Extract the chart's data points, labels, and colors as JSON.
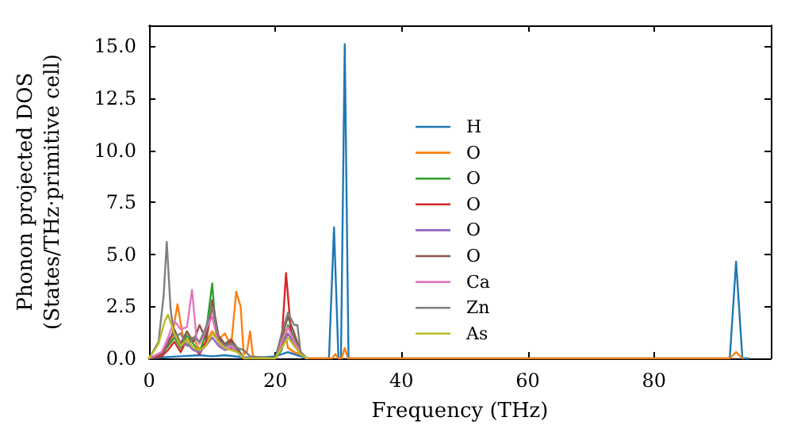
{
  "chart_data": {
    "type": "line",
    "xlabel": "Frequency (THz)",
    "ylabel": "Phonon projected DOS\n(States/THz·primitive cell)",
    "xlim": [
      0,
      98.5
    ],
    "xticks": [
      0,
      20,
      40,
      60,
      80
    ],
    "ylim": [
      0,
      16
    ],
    "yticks": [
      {
        "value": 0,
        "label": "0.0"
      },
      {
        "value": 2.5,
        "label": "2.5"
      },
      {
        "value": 5,
        "label": "5.0"
      },
      {
        "value": 7.5,
        "label": "7.5"
      },
      {
        "value": 10,
        "label": "10.0"
      },
      {
        "value": 12.5,
        "label": "12.5"
      },
      {
        "value": 15,
        "label": "15.0"
      }
    ],
    "grid": false,
    "legend": "center",
    "marker": "none",
    "line_style": "solid",
    "series": [
      {
        "name": "H",
        "color": "#1f77b4",
        "x": [
          0,
          2,
          5,
          8,
          10,
          12,
          15,
          18,
          20,
          22,
          23,
          24,
          25,
          28.5,
          29.3,
          30,
          30.4,
          31,
          31.6,
          32,
          92,
          93,
          94,
          95
        ],
        "values": [
          0,
          0.05,
          0.1,
          0.15,
          0.1,
          0.15,
          0.05,
          0.05,
          0.1,
          0.3,
          0.2,
          0.1,
          0,
          0,
          6.3,
          0,
          0,
          15.1,
          0,
          0,
          0,
          4.65,
          0,
          0
        ]
      },
      {
        "name": "O",
        "color": "#ff7f0e",
        "x": [
          0,
          2,
          3.5,
          4.5,
          5.5,
          7,
          8,
          9,
          10,
          11,
          12,
          13,
          13.8,
          14.5,
          15,
          15.5,
          16,
          16.5,
          20,
          21,
          21.5,
          22,
          23,
          24,
          25,
          29,
          29.5,
          30,
          30.5,
          31,
          31.5,
          92,
          93,
          94
        ],
        "values": [
          0,
          0.2,
          0.8,
          2.6,
          0.8,
          1.0,
          0.4,
          0.8,
          1.3,
          0.9,
          1.2,
          0.6,
          3.2,
          2.5,
          0.2,
          0.3,
          1.3,
          0,
          0,
          0.6,
          1.4,
          0.5,
          0.3,
          0.2,
          0,
          0,
          0.2,
          0,
          0,
          0.5,
          0,
          0,
          0.3,
          0
        ]
      },
      {
        "name": "O",
        "color": "#2ca02c",
        "x": [
          0,
          2,
          3,
          4,
          5,
          6,
          7,
          8,
          9,
          10,
          10.5,
          11,
          12,
          13,
          14,
          15,
          20,
          21,
          22,
          23,
          24,
          25
        ],
        "values": [
          0,
          0.2,
          0.6,
          1.0,
          0.5,
          1.1,
          0.7,
          0.3,
          1.2,
          3.6,
          1.6,
          0.8,
          0.7,
          0.9,
          0.5,
          0,
          0,
          0.4,
          1.6,
          1.0,
          0.3,
          0
        ]
      },
      {
        "name": "O",
        "color": "#d62728",
        "x": [
          0,
          2,
          3,
          4,
          5,
          6,
          7,
          8,
          9,
          10,
          11,
          12,
          13,
          14,
          15,
          20,
          21,
          21.7,
          22.5,
          23
        ],
        "values": [
          0,
          0.1,
          0.4,
          0.8,
          0.3,
          0.9,
          0.5,
          0.2,
          0.8,
          2.5,
          1.0,
          0.6,
          0.9,
          0.4,
          0,
          0,
          0.8,
          4.1,
          1.2,
          0.6
        ]
      },
      {
        "name": "O",
        "color": "#9467bd",
        "x": [
          0,
          2,
          3,
          4,
          5,
          6,
          7,
          8,
          9,
          10,
          11,
          12,
          13,
          14,
          15,
          20,
          21,
          22,
          23,
          24,
          25
        ],
        "values": [
          0,
          0.3,
          0.9,
          1.2,
          0.6,
          0.7,
          0.4,
          0.3,
          0.6,
          1.0,
          0.6,
          0.4,
          0.5,
          0.3,
          0,
          0,
          0.5,
          1.2,
          0.7,
          0.2,
          0
        ]
      },
      {
        "name": "O",
        "color": "#8c564b",
        "x": [
          0,
          2,
          3,
          4,
          5,
          6,
          7,
          8,
          9,
          10,
          11,
          12,
          13,
          14,
          15,
          20,
          21,
          22,
          23,
          24,
          25
        ],
        "values": [
          0,
          0.2,
          0.7,
          1.4,
          0.7,
          1.3,
          0.8,
          1.6,
          0.9,
          2.8,
          1.1,
          0.7,
          0.8,
          0.4,
          0,
          0,
          1.0,
          2.0,
          1.2,
          0.3,
          0
        ]
      },
      {
        "name": "Ca",
        "color": "#e377c2",
        "x": [
          0,
          2,
          3,
          4,
          5,
          6,
          6.8,
          7.5,
          8,
          9,
          10,
          11,
          12,
          13,
          14,
          15,
          20,
          21,
          22,
          23,
          24,
          25
        ],
        "values": [
          0,
          0.3,
          1.0,
          1.8,
          1.4,
          1.5,
          3.3,
          1.0,
          0.7,
          1.4,
          2.0,
          0.7,
          0.5,
          0.6,
          0.3,
          0,
          0,
          0.8,
          1.5,
          0.8,
          0.3,
          0
        ]
      },
      {
        "name": "Zn",
        "color": "#7f7f7f",
        "x": [
          0,
          1.5,
          2.3,
          2.8,
          3.4,
          4,
          5,
          6,
          7,
          8,
          9,
          10,
          11,
          12,
          13,
          14,
          15,
          16,
          20,
          21,
          22,
          23,
          23.5,
          24,
          25
        ],
        "values": [
          0,
          0.8,
          3.0,
          5.6,
          2.4,
          1.0,
          1.2,
          0.6,
          1.0,
          0.8,
          1.5,
          2.5,
          0.9,
          0.6,
          0.7,
          0.5,
          0.4,
          0.1,
          0,
          1.2,
          2.2,
          1.6,
          1.6,
          0.3,
          0
        ]
      },
      {
        "name": "As",
        "color": "#bcbd22",
        "x": [
          0,
          1.5,
          2.5,
          3,
          4,
          5,
          6,
          7,
          8,
          9,
          10,
          11,
          12,
          13,
          14,
          15,
          20,
          21,
          22,
          23,
          24,
          25
        ],
        "values": [
          0,
          0.7,
          1.8,
          2.1,
          1.2,
          0.6,
          0.9,
          0.5,
          0.4,
          0.6,
          1.2,
          0.8,
          0.5,
          0.4,
          0.3,
          0,
          0,
          0.5,
          1.0,
          0.6,
          0.2,
          0
        ]
      }
    ]
  }
}
